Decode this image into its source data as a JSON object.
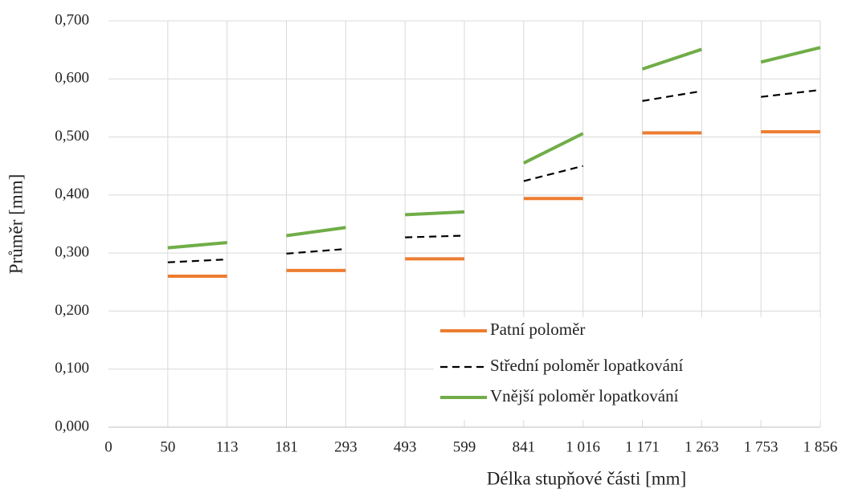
{
  "chart_data": {
    "type": "line",
    "connect": "pairs",
    "xlabel": "Délka stupňové části [mm]",
    "ylabel": "Průměr [mm]",
    "categories": [
      "0",
      "50",
      "113",
      "181",
      "293",
      "493",
      "599",
      "841",
      "1 016",
      "1 171",
      "1 263",
      "1 753",
      "1 856"
    ],
    "series": [
      {
        "name": "Patní poloměr",
        "color": "#ed7d31",
        "dash": "solid",
        "values": [
          null,
          0.26,
          0.26,
          0.27,
          0.27,
          0.29,
          0.29,
          0.394,
          0.394,
          0.507,
          0.507,
          0.509,
          0.509
        ]
      },
      {
        "name": "Střední poloměr lopatkování",
        "color": "#000000",
        "dash": "dashed",
        "values": [
          null,
          0.284,
          0.289,
          0.299,
          0.307,
          0.327,
          0.33,
          0.424,
          0.45,
          0.562,
          0.579,
          0.569,
          0.581
        ]
      },
      {
        "name": "Vnější poloměr lopatkování",
        "color": "#70ad47",
        "dash": "solid",
        "values": [
          null,
          0.309,
          0.318,
          0.33,
          0.344,
          0.366,
          0.371,
          0.455,
          0.506,
          0.617,
          0.651,
          0.629,
          0.654
        ]
      }
    ],
    "ylim": [
      0,
      0.7
    ],
    "yticks": [
      {
        "value": 0,
        "label": "0,000"
      },
      {
        "value": 0.1,
        "label": "0,100"
      },
      {
        "value": 0.2,
        "label": "0,200"
      },
      {
        "value": 0.3,
        "label": "0,300"
      },
      {
        "value": 0.4,
        "label": "0,400"
      },
      {
        "value": 0.5,
        "label": "0,500"
      },
      {
        "value": 0.6,
        "label": "0,600"
      },
      {
        "value": 0.7,
        "label": "0,700"
      }
    ],
    "grid": true,
    "legend": "lower right"
  }
}
